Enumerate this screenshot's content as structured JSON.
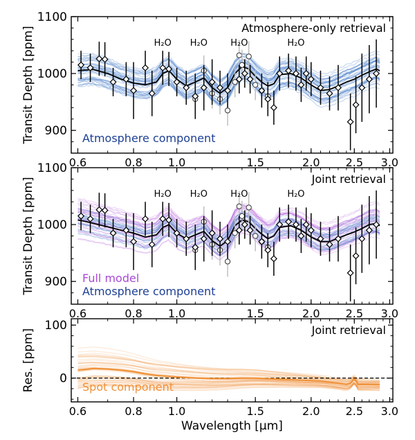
{
  "chart_data": [
    {
      "type": "line",
      "panel": "top",
      "ylabel": "Transit Depth [ppm]",
      "ylim": [
        860,
        1100
      ],
      "yticks": [
        "900",
        "1000",
        "1100"
      ],
      "xlim": [
        0.58,
        3.05
      ],
      "xscale": "log",
      "xticks": [
        "0.6",
        "0.8",
        "1.0",
        "1.5",
        "2.0",
        "2.5",
        "3.0"
      ],
      "title": "Atmosphere-only retrieval",
      "annotations": [
        "H₂O",
        "H₂O",
        "H₂O",
        "H₂O"
      ],
      "annotation_x": [
        0.93,
        1.12,
        1.38,
        1.85
      ],
      "legend": [
        {
          "label": "Atmosphere component",
          "color": "#1c3f94"
        }
      ],
      "colors": {
        "ensemble": "#3b74c4",
        "median": "#000000"
      },
      "model_median": {
        "x": [
          0.6,
          0.62,
          0.65,
          0.7,
          0.75,
          0.8,
          0.85,
          0.9,
          0.93,
          0.96,
          1.0,
          1.05,
          1.1,
          1.15,
          1.2,
          1.25,
          1.3,
          1.35,
          1.4,
          1.45,
          1.5,
          1.55,
          1.6,
          1.65,
          1.7,
          1.8,
          1.9,
          2.0,
          2.1,
          2.2,
          2.3,
          2.4,
          2.5,
          2.6,
          2.7,
          2.8,
          2.85
        ],
        "y": [
          1005,
          1006,
          1007,
          1000,
          990,
          983,
          980,
          985,
          1000,
          1005,
          990,
          978,
          985,
          992,
          975,
          965,
          975,
          1000,
          1012,
          1008,
          995,
          985,
          978,
          982,
          998,
          1000,
          992,
          980,
          970,
          972,
          978,
          985,
          990,
          997,
          1003,
          1008,
          1005
        ]
      },
      "points_diamond": {
        "x": [
          0.61,
          0.64,
          0.67,
          0.69,
          0.72,
          0.77,
          0.8,
          0.85,
          0.88,
          0.93,
          0.96,
          1.0,
          1.05,
          1.1,
          1.15,
          1.2,
          1.25,
          1.3,
          1.38,
          1.42,
          1.46,
          1.55,
          1.6,
          1.65,
          1.7,
          1.78,
          1.85,
          1.9,
          1.95,
          2.0,
          2.1,
          2.2,
          2.3,
          2.45,
          2.52,
          2.6,
          2.7,
          2.8
        ],
        "y": [
          1015,
          1010,
          1026,
          1025,
          985,
          990,
          970,
          1010,
          965,
          1010,
          1008,
          985,
          975,
          960,
          975,
          985,
          975,
          970,
          990,
          1000,
          990,
          970,
          955,
          940,
          1000,
          1005,
          1000,
          980,
          1000,
          990,
          975,
          965,
          975,
          915,
          945,
          975,
          990,
          1000
        ],
        "err": [
          25,
          25,
          30,
          30,
          25,
          30,
          50,
          30,
          40,
          30,
          30,
          25,
          30,
          40,
          40,
          40,
          30,
          30,
          25,
          25,
          25,
          30,
          30,
          30,
          30,
          30,
          30,
          30,
          30,
          30,
          30,
          30,
          40,
          50,
          50,
          60,
          60,
          60
        ]
      },
      "points_circle": {
        "x": [
          1.1,
          1.15,
          1.2,
          1.25,
          1.3,
          1.35,
          1.38,
          1.4,
          1.45,
          1.5,
          1.55,
          1.6
        ],
        "y": [
          955,
          1005,
          965,
          955,
          935,
          985,
          1032,
          1015,
          1030,
          980,
          970,
          960
        ]
      }
    },
    {
      "type": "line",
      "panel": "middle",
      "ylabel": "Transit Depth [ppm]",
      "ylim": [
        860,
        1100
      ],
      "yticks": [
        "900",
        "1000",
        "1100"
      ],
      "xlim": [
        0.58,
        3.05
      ],
      "xscale": "log",
      "xticks": [
        "0.6",
        "0.8",
        "1.0",
        "1.5",
        "2.0",
        "2.5",
        "3.0"
      ],
      "title": "Joint retrieval",
      "annotations": [
        "H₂O",
        "H₂O",
        "H₂O",
        "H₂O"
      ],
      "annotation_x": [
        0.93,
        1.12,
        1.38,
        1.85
      ],
      "legend": [
        {
          "label": "Full model",
          "color": "#a94ad8"
        },
        {
          "label": "Atmosphere component",
          "color": "#1c3f94"
        }
      ],
      "colors": {
        "full_model": "#a94ad8",
        "atmosphere": "#3b74c4",
        "median": "#000000"
      },
      "model_median": {
        "x": [
          0.6,
          0.62,
          0.65,
          0.7,
          0.75,
          0.8,
          0.85,
          0.9,
          0.93,
          0.96,
          1.0,
          1.05,
          1.1,
          1.15,
          1.2,
          1.25,
          1.3,
          1.35,
          1.4,
          1.45,
          1.5,
          1.55,
          1.6,
          1.65,
          1.7,
          1.8,
          1.9,
          2.0,
          2.1,
          2.2,
          2.3,
          2.4,
          2.5,
          2.6,
          2.7,
          2.8,
          2.85
        ],
        "y": [
          1008,
          1006,
          1002,
          996,
          990,
          985,
          978,
          982,
          995,
          1000,
          985,
          975,
          982,
          988,
          972,
          962,
          972,
          998,
          1008,
          1005,
          993,
          983,
          975,
          980,
          995,
          998,
          990,
          978,
          970,
          970,
          976,
          982,
          987,
          993,
          1000,
          1002,
          998
        ]
      },
      "points_diamond": {
        "x": [
          0.61,
          0.64,
          0.67,
          0.69,
          0.72,
          0.77,
          0.8,
          0.85,
          0.88,
          0.93,
          0.96,
          1.0,
          1.05,
          1.1,
          1.15,
          1.2,
          1.25,
          1.3,
          1.38,
          1.42,
          1.46,
          1.55,
          1.6,
          1.65,
          1.7,
          1.78,
          1.85,
          1.9,
          1.95,
          2.0,
          2.1,
          2.2,
          2.3,
          2.45,
          2.52,
          2.6,
          2.7,
          2.8
        ],
        "y": [
          1015,
          1010,
          1026,
          1025,
          985,
          990,
          970,
          1010,
          965,
          1010,
          1008,
          985,
          975,
          960,
          975,
          985,
          975,
          970,
          990,
          1000,
          990,
          970,
          955,
          940,
          1000,
          1005,
          1000,
          980,
          1000,
          990,
          975,
          965,
          975,
          915,
          945,
          975,
          990,
          1000
        ],
        "err": [
          25,
          25,
          30,
          30,
          25,
          30,
          50,
          30,
          40,
          30,
          30,
          25,
          30,
          40,
          40,
          40,
          30,
          30,
          25,
          25,
          25,
          30,
          30,
          30,
          30,
          30,
          30,
          30,
          30,
          30,
          30,
          30,
          40,
          50,
          50,
          60,
          60,
          60
        ]
      },
      "points_circle": {
        "x": [
          1.1,
          1.15,
          1.2,
          1.25,
          1.3,
          1.35,
          1.38,
          1.4,
          1.45,
          1.5,
          1.55,
          1.6
        ],
        "y": [
          955,
          1005,
          965,
          955,
          935,
          985,
          1032,
          1015,
          1030,
          980,
          970,
          960
        ]
      }
    },
    {
      "type": "line",
      "panel": "bottom",
      "ylabel": "Res. [ppm]",
      "xlabel": "Wavelength [μm]",
      "ylim": [
        -45,
        112
      ],
      "yticks": [
        "0",
        "100"
      ],
      "xlim": [
        0.58,
        3.05
      ],
      "xscale": "log",
      "xticks": [
        "0.6",
        "0.8",
        "1.0",
        "1.5",
        "2.0",
        "2.5",
        "3.0"
      ],
      "title": "Joint retrieval",
      "legend": [
        {
          "label": "Spot component",
          "color": "#f0923a"
        }
      ],
      "colors": {
        "spot": "#f0923a",
        "zero_line": "#000000"
      },
      "spot_median": {
        "x": [
          0.6,
          0.65,
          0.7,
          0.75,
          0.8,
          0.85,
          0.9,
          1.0,
          1.1,
          1.2,
          1.3,
          1.4,
          1.5,
          1.6,
          1.7,
          1.8,
          1.9,
          2.0,
          2.1,
          2.2,
          2.3,
          2.4,
          2.45,
          2.5,
          2.55,
          2.6,
          2.7,
          2.8,
          2.85
        ],
        "y": [
          15,
          18,
          17,
          15,
          12,
          8,
          5,
          2,
          0,
          -1,
          -1,
          0,
          0,
          -1,
          -2,
          -3,
          -4,
          -5,
          -6,
          -8,
          -10,
          -12,
          -10,
          -2,
          -12,
          -12,
          -12,
          -12,
          -12
        ]
      }
    }
  ]
}
